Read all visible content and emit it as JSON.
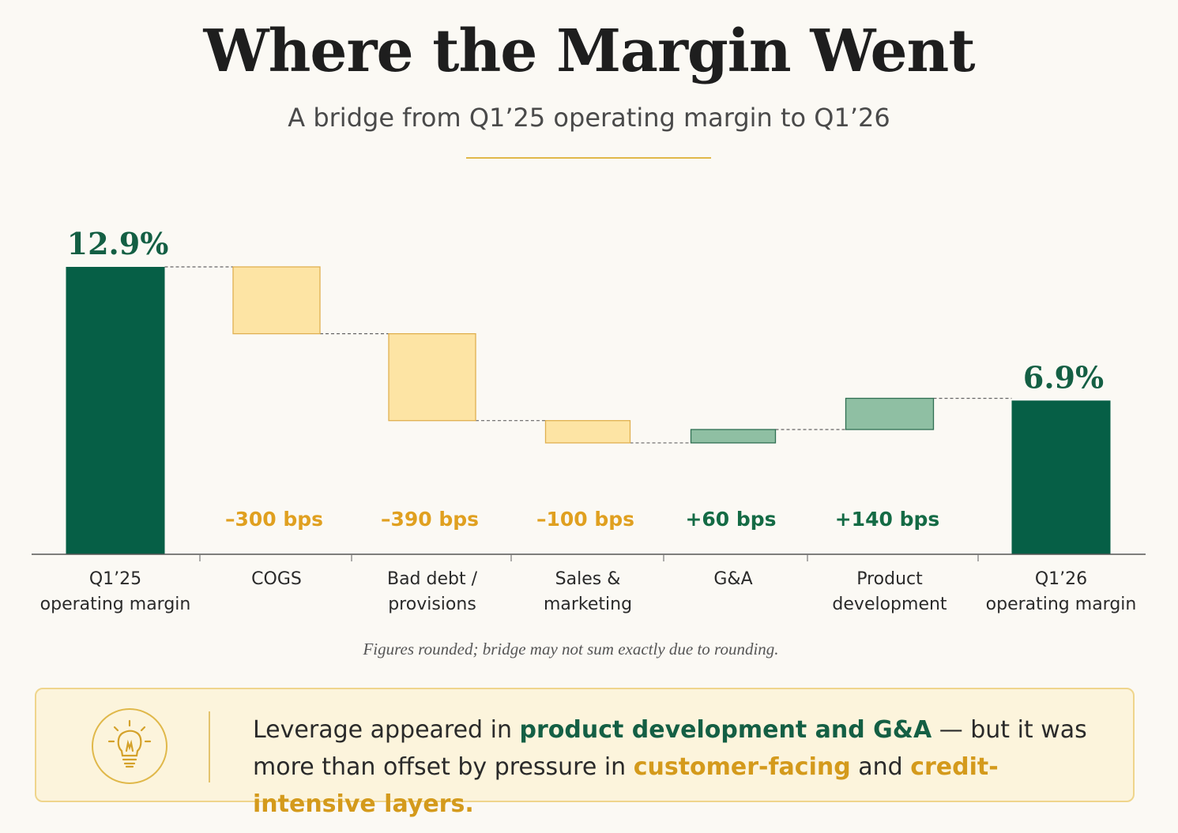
{
  "header": {
    "title": "Where the Margin Went",
    "subtitle": "A bridge from Q1’25 operating margin to Q1’26"
  },
  "chart_data": {
    "type": "waterfall",
    "categories": [
      "Q1’25 operating margin",
      "COGS",
      "Bad debt / provisions",
      "Sales & marketing",
      "G&A",
      "Product development",
      "Q1’26 operating margin"
    ],
    "values": [
      12.9,
      -3.0,
      -3.9,
      -1.0,
      0.6,
      1.4,
      6.9
    ],
    "unit": "%",
    "ylim": [
      0,
      14
    ],
    "points": [
      {
        "label_lines": [
          "Q1’25",
          "operating margin"
        ],
        "kind": "total",
        "value": 12.9,
        "value_label": "12.9%"
      },
      {
        "label_lines": [
          "COGS"
        ],
        "kind": "decrease",
        "value": -3.0,
        "value_label": "–300 bps"
      },
      {
        "label_lines": [
          "Bad debt /",
          "provisions"
        ],
        "kind": "decrease",
        "value": -3.9,
        "value_label": "–390 bps"
      },
      {
        "label_lines": [
          "Sales &",
          "marketing"
        ],
        "kind": "decrease",
        "value": -1.0,
        "value_label": "–100 bps"
      },
      {
        "label_lines": [
          "G&A"
        ],
        "kind": "increase",
        "value": 0.6,
        "value_label": "+60 bps"
      },
      {
        "label_lines": [
          "Product",
          "development"
        ],
        "kind": "increase",
        "value": 1.4,
        "value_label": "+140 bps"
      },
      {
        "label_lines": [
          "Q1’26",
          "operating margin"
        ],
        "kind": "total",
        "value": 6.9,
        "value_label": "6.9%"
      }
    ],
    "colors": {
      "total": "#065f46",
      "decrease": "#fde4a4",
      "decrease_stroke": "#e0b050",
      "decrease_text": "#e0a020",
      "increase": "#8fbfa3",
      "increase_stroke": "#2f6f52",
      "increase_text": "#146b45",
      "total_text": "#145f44"
    }
  },
  "footnote": "Figures rounded; bridge may not sum exactly due to rounding.",
  "callout": {
    "icon": "lightbulb-icon",
    "text_1": "Leverage appeared in ",
    "highlight_1": "product development and G&A",
    "text_2": " — but it was more than offset by pressure in ",
    "highlight_2": "customer-facing",
    "text_3": " and ",
    "highlight_3": "credit-intensive layers."
  }
}
